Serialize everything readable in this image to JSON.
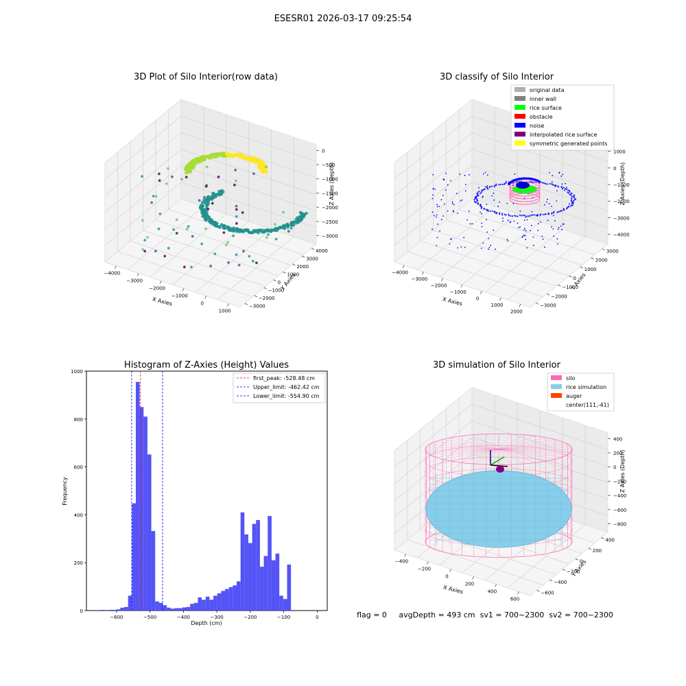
{
  "figure": {
    "suptitle": "ESESR01 2026-03-17 09:25:54",
    "footer": "flag = 0     avgDepth = 493 cm  sv1 = 700~2300  sv2 = 700~2300"
  },
  "chart_data": [
    {
      "type": "scatter",
      "title": "3D Plot of Silo Interior(row data)",
      "projection": "3d",
      "xlabel": "X Axies",
      "ylabel": "Y Axies",
      "zlabel": "Z Axies (Depth)",
      "x_ticks": [
        "−4000",
        "−3000",
        "−2000",
        "−1000",
        "0",
        "1000"
      ],
      "y_ticks": [
        "4000",
        "3000",
        "2000",
        "1000",
        "0",
        "−1000",
        "−2000",
        "−3000"
      ],
      "z_ticks": [
        "0",
        "−500",
        "−1000",
        "−1500",
        "−2000",
        "−2500",
        "−3000"
      ],
      "xlim": [
        -4500,
        1500
      ],
      "ylim": [
        -3500,
        4500
      ],
      "zlim": [
        -3200,
        0
      ],
      "colormap": "viridis",
      "grid": true
    },
    {
      "type": "scatter",
      "title": "3D classify of Silo Interior",
      "projection": "3d",
      "xlabel": "X Axies",
      "ylabel": "Y Axies",
      "zlabel": "Z Axies (Depth)",
      "x_ticks": [
        "−4000",
        "−3000",
        "−2000",
        "−1000",
        "0",
        "1000",
        "2000"
      ],
      "y_ticks": [
        "3000",
        "2000",
        "1000",
        "0",
        "−1000",
        "−2000",
        "−3000"
      ],
      "z_ticks": [
        "1000",
        "0",
        "−1000",
        "−2000",
        "−3000",
        "−4000"
      ],
      "legend_placement": "top-right",
      "legend": [
        {
          "name": "original data",
          "color": "#b0b0b0"
        },
        {
          "name": "inner wall",
          "color": "#808080"
        },
        {
          "name": "rice surface",
          "color": "#00ff00"
        },
        {
          "name": "obstacle",
          "color": "#ff0000"
        },
        {
          "name": "noise",
          "color": "#0000ff"
        },
        {
          "name": "interpolated rice surface",
          "color": "#800080"
        },
        {
          "name": "symmetric generated points",
          "color": "#ffff00"
        }
      ],
      "grid": true
    },
    {
      "type": "bar",
      "title": "Histogram of Z-Axies (Height) Values",
      "xlabel": "Depth (cm)",
      "ylabel": "Frequency",
      "xlim": [
        -690,
        30
      ],
      "ylim": [
        0,
        1000
      ],
      "x_ticks": [
        -600,
        -500,
        -400,
        -300,
        -200,
        -100,
        0
      ],
      "y_ticks": [
        0,
        200,
        400,
        600,
        800,
        1000
      ],
      "bar_color": "#4b4bf5",
      "bin_edges_start": -670,
      "bin_width": 11.6,
      "values": [
        2,
        0,
        3,
        0,
        3,
        3,
        5,
        12,
        15,
        62,
        448,
        955,
        850,
        810,
        652,
        332,
        38,
        32,
        22,
        12,
        8,
        10,
        10,
        13,
        15,
        28,
        32,
        55,
        45,
        58,
        45,
        62,
        72,
        82,
        90,
        98,
        105,
        122,
        410,
        318,
        282,
        362,
        378,
        183,
        228,
        395,
        210,
        238,
        62,
        48,
        192
      ],
      "lines": [
        {
          "name": "first_peak: -528.48 cm",
          "x": -528.48,
          "color": "#ff0000"
        },
        {
          "name": "Upper_limit: -462.42 cm",
          "x": -462.42,
          "color": "#0000ff"
        },
        {
          "name": "Lower_limit: -554.90 cm",
          "x": -554.9,
          "color": "#0000ff"
        }
      ],
      "legend_placement": "top-right"
    },
    {
      "type": "area",
      "title": "3D simulation of Silo Interior",
      "projection": "3d",
      "xlabel": "X Axies",
      "ylabel": "Y Axies",
      "zlabel": "Z Axies (Depth)",
      "x_ticks": [
        "−400",
        "−200",
        "0",
        "200",
        "400",
        "600"
      ],
      "y_ticks": [
        "400",
        "200",
        "0",
        "−200",
        "−400",
        "−600"
      ],
      "z_ticks": [
        "400",
        "200",
        "0",
        "−200",
        "−400",
        "−600",
        "−800"
      ],
      "legend_placement": "top-right",
      "legend": [
        {
          "name": "silo",
          "color": "#ff69b4"
        },
        {
          "name": "rice simulation",
          "color": "#87ceeb"
        },
        {
          "name": "auger",
          "color": "#ff4500"
        },
        {
          "name": "center(111,-41)",
          "color": ""
        }
      ],
      "grid": true
    }
  ]
}
